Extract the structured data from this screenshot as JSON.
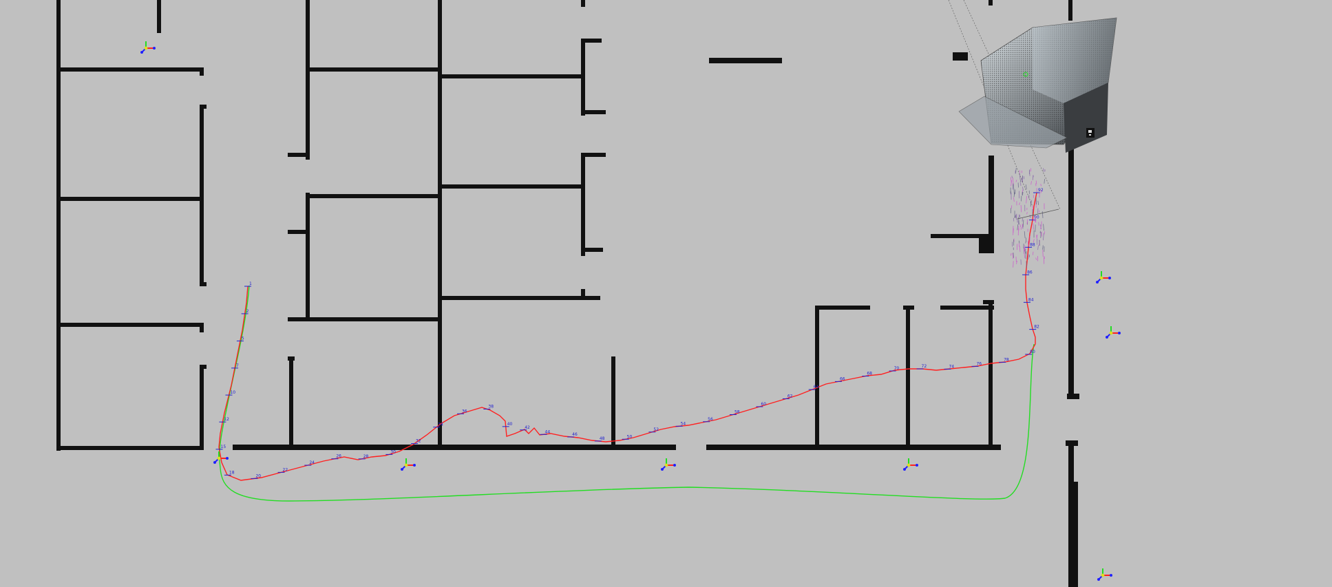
{
  "view": {
    "background": "#c0c0c0",
    "wall_color": "#111111",
    "estimated_path_color": "#ff2020",
    "ground_truth_path_color": "#22dd22",
    "pose_label_color": "#2020d0"
  },
  "pose_labels": [
    "1",
    "2",
    "5",
    "7",
    "10",
    "12",
    "15",
    "18",
    "20",
    "22",
    "24",
    "26",
    "28",
    "30",
    "32",
    "34",
    "36",
    "38",
    "40",
    "42",
    "44",
    "46",
    "48",
    "50",
    "52",
    "54",
    "56",
    "58",
    "60",
    "62",
    "64",
    "66",
    "68",
    "70",
    "72",
    "74",
    "76",
    "78",
    "80",
    "82",
    "84",
    "86",
    "88",
    "90",
    "92"
  ],
  "icons": [
    "coordinate-frame-icon",
    "sensor-box-icon",
    "point-cloud-icon"
  ]
}
